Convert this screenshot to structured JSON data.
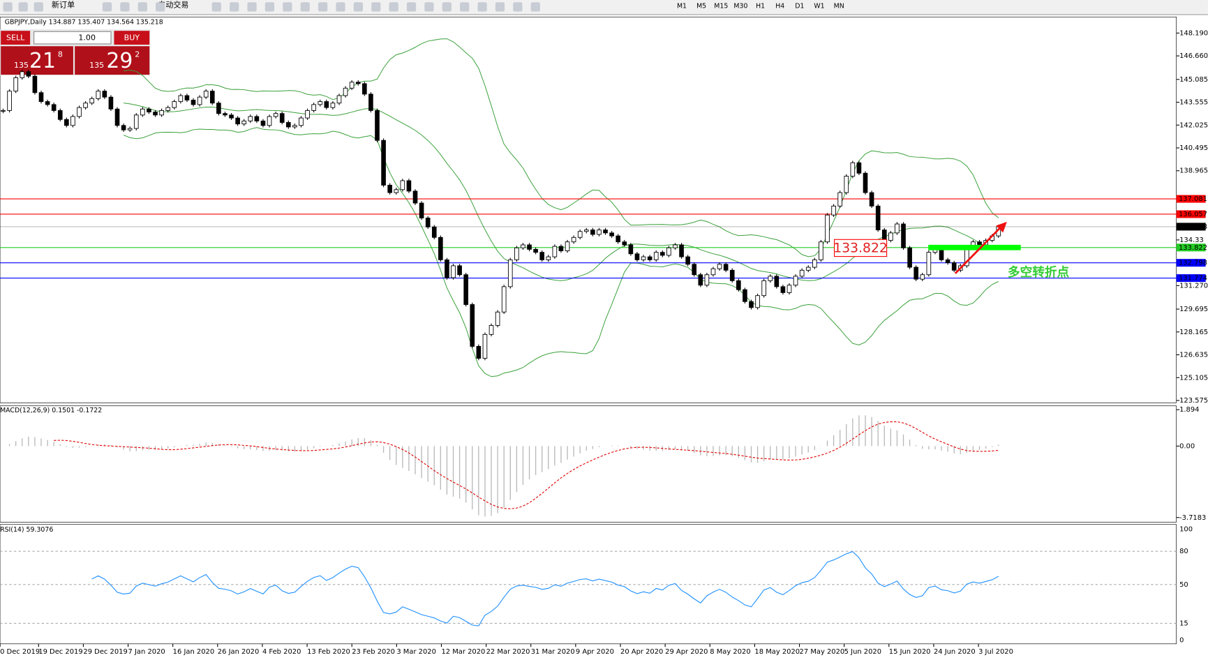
{
  "toolbar": {
    "new_order": "新订单",
    "auto_trading": "自动交易",
    "timeframes": [
      "M1",
      "M5",
      "M15",
      "M30",
      "H1",
      "H4",
      "D1",
      "W1",
      "MN"
    ]
  },
  "trade_panel": {
    "sell": "SELL",
    "buy": "BUY",
    "lots": "1.00",
    "bid": {
      "big": "135",
      "main": "21",
      "small": "8"
    },
    "ask": {
      "big": "135",
      "main": "29",
      "small": "2"
    }
  },
  "chart": {
    "title": "GBPJPY,Daily 134.887 135.407 134.564 135.218",
    "closes": [
      143.0,
      144.3,
      145.2,
      145.6,
      145.3,
      144.2,
      143.6,
      143.4,
      143.0,
      142.4,
      142.0,
      142.6,
      143.2,
      143.5,
      143.8,
      144.3,
      143.9,
      143.1,
      142.0,
      141.7,
      141.8,
      142.7,
      143.1,
      142.9,
      142.7,
      143.0,
      143.2,
      143.6,
      144.0,
      143.7,
      143.4,
      143.9,
      144.3,
      143.5,
      142.8,
      142.7,
      142.5,
      142.1,
      142.3,
      142.6,
      142.3,
      142.0,
      142.6,
      142.8,
      142.2,
      141.9,
      142.0,
      142.5,
      143.0,
      143.4,
      143.6,
      143.2,
      143.5,
      144.0,
      144.5,
      144.9,
      144.8,
      144.1,
      143.0,
      141.0,
      138.0,
      137.5,
      137.7,
      138.3,
      137.6,
      136.8,
      135.8,
      135.2,
      134.5,
      133.0,
      131.8,
      132.6,
      132.0,
      130.0,
      127.2,
      126.4,
      128.0,
      128.6,
      129.5,
      131.2,
      133.0,
      133.8,
      134.0,
      133.7,
      133.5,
      133.0,
      133.2,
      133.9,
      133.6,
      134.2,
      134.5,
      134.9,
      135.0,
      134.7,
      135.0,
      134.8,
      134.6,
      134.2,
      134.0,
      133.4,
      133.0,
      133.2,
      133.0,
      133.5,
      133.3,
      133.8,
      134.0,
      133.2,
      132.7,
      132.0,
      131.3,
      132.0,
      132.4,
      132.7,
      132.3,
      131.6,
      131.0,
      130.2,
      129.8,
      130.6,
      131.6,
      131.9,
      131.2,
      130.8,
      131.3,
      131.9,
      132.3,
      132.5,
      133.0,
      134.2,
      136.0,
      136.6,
      137.5,
      138.6,
      139.5,
      138.8,
      137.5,
      136.6,
      135.0,
      134.3,
      134.8,
      135.4,
      133.8,
      132.5,
      131.7,
      132.0,
      133.5,
      133.8,
      133.0,
      132.8,
      132.3,
      132.6,
      133.8,
      134.2,
      134.0,
      134.3,
      134.6,
      135.218
    ],
    "ylim": [
      123.42,
      149.27
    ],
    "yticks": [
      {
        "value": 148.19,
        "label": "148.190"
      },
      {
        "value": 146.66,
        "label": "146.660"
      },
      145.085,
      143.555,
      142.025,
      140.495,
      138.965,
      134.33,
      {
        "value": 131.27,
        "label": "131.270"
      },
      129.695,
      128.165,
      126.635,
      125.105,
      123.575
    ],
    "levels": [
      {
        "value": 137.081,
        "color": "#ff0000"
      },
      {
        "value": 136.057,
        "color": "#ff0000"
      },
      {
        "value": 135.218,
        "color": "#000000"
      },
      {
        "value": 133.822,
        "color": "#22cc22"
      },
      {
        "value": 132.798,
        "color": "#0000ff"
      },
      {
        "value": 131.774,
        "color": "#0000ff"
      }
    ],
    "dates": [
      "0 Dec 2019",
      "19 Dec 2019",
      "29 Dec 2019",
      "7 Jan 2020",
      "16 Jan 2020",
      "26 Jan 2020",
      "4 Feb 2020",
      "13 Feb 2020",
      "23 Feb 2020",
      "3 Mar 2020",
      "12 Mar 2020",
      "22 Mar 2020",
      "31 Mar 2020",
      "9 Apr 2020",
      "20 Apr 2020",
      "29 Apr 2020",
      "8 May 2020",
      "18 May 2020",
      "27 May 2020",
      "5 Jun 2020",
      "15 Jun 2020",
      "24 Jun 2020",
      "3 Jul 2020"
    ],
    "annotation_price": "133.822",
    "annotation_text": "多空转折点"
  },
  "macd": {
    "title": "MACD(12,26,9) 0.1501 -0.1722",
    "ylim": [
      -3.7183,
      1.894
    ],
    "yticks": [
      {
        "value": 1.894,
        "label": "1.894"
      },
      {
        "value": 0,
        "label": "0.00"
      },
      -3.7183
    ]
  },
  "rsi": {
    "title": "RSI(14) 59.3076",
    "ylim": [
      0,
      100
    ],
    "yticks": [
      100,
      80,
      50,
      15,
      0
    ]
  }
}
